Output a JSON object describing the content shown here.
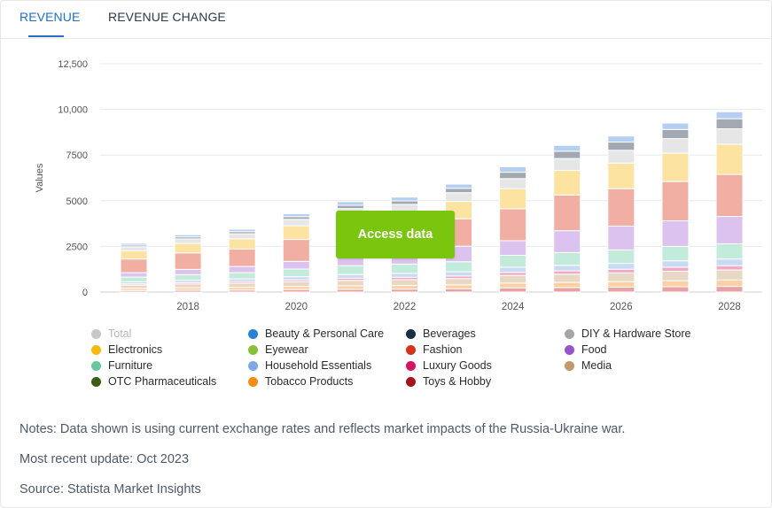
{
  "tabs": [
    {
      "label": "REVENUE",
      "active": true
    },
    {
      "label": "REVENUE CHANGE",
      "active": false
    }
  ],
  "access_button": {
    "label": "Access data"
  },
  "notes": {
    "notes": "Notes: Data shown is using current exchange rates and reflects market impacts of the Russia-Ukraine war.",
    "update": "Most recent update: Oct 2023",
    "source": "Source: Statista Market Insights"
  },
  "colors": {
    "accent": "#1f6fc2",
    "access_button": "#7ac60f"
  },
  "chart_data": {
    "type": "bar",
    "stacked": true,
    "ylabel": "Values",
    "xlabel": "",
    "ylim": [
      0,
      12500
    ],
    "yticks": [
      0,
      2500,
      5000,
      7500,
      10000,
      12500
    ],
    "ytick_labels": [
      "0",
      "2500",
      "5000",
      "7500",
      "10,000",
      "12,500"
    ],
    "categories": [
      "2017",
      "2018",
      "2019",
      "2020",
      "2021",
      "2022",
      "2023",
      "2024",
      "2025",
      "2026",
      "2027",
      "2028"
    ],
    "xtick_labels": [
      "2018",
      "2020",
      "2022",
      "2024",
      "2026",
      "2028"
    ],
    "grid": true,
    "legend_position": "bottom",
    "legend": [
      {
        "name": "Total",
        "color": "#c8c8c8",
        "disabled": true
      },
      {
        "name": "Beauty & Personal Care",
        "color": "#2a7fd9"
      },
      {
        "name": "Beverages",
        "color": "#1c2e44"
      },
      {
        "name": "DIY & Hardware Store",
        "color": "#a6a6a6"
      },
      {
        "name": "Electronics",
        "color": "#f6ba0f"
      },
      {
        "name": "Eyewear",
        "color": "#88c03c"
      },
      {
        "name": "Fashion",
        "color": "#d6331c"
      },
      {
        "name": "Food",
        "color": "#9a52cc"
      },
      {
        "name": "Furniture",
        "color": "#67c8a0"
      },
      {
        "name": "Household Essentials",
        "color": "#7ea8e3"
      },
      {
        "name": "Luxury Goods",
        "color": "#d61464"
      },
      {
        "name": "Media",
        "color": "#c2996a"
      },
      {
        "name": "OTC Pharmaceuticals",
        "color": "#3b5e12"
      },
      {
        "name": "Tobacco Products",
        "color": "#f48b17"
      },
      {
        "name": "Toys & Hobby",
        "color": "#a4141d"
      }
    ],
    "series": [
      {
        "name": "Toys & Hobby",
        "color": "#e8a1a5",
        "values": [
          80,
          100,
          110,
          140,
          150,
          160,
          180,
          230,
          250,
          270,
          290,
          310
        ]
      },
      {
        "name": "Tobacco Products",
        "color": "#fbd0a2",
        "values": [
          120,
          140,
          150,
          170,
          190,
          200,
          220,
          260,
          280,
          300,
          330,
          350
        ]
      },
      {
        "name": "Media",
        "color": "#e8d7c3",
        "values": [
          180,
          200,
          230,
          260,
          300,
          320,
          340,
          420,
          450,
          480,
          520,
          550
        ]
      },
      {
        "name": "Luxury Goods",
        "color": "#f3a8c6",
        "values": [
          70,
          80,
          90,
          100,
          120,
          130,
          140,
          170,
          180,
          200,
          220,
          230
        ]
      },
      {
        "name": "Household Essentials",
        "color": "#c8daf4",
        "values": [
          110,
          130,
          140,
          170,
          200,
          210,
          230,
          280,
          300,
          320,
          350,
          370
        ]
      },
      {
        "name": "Furniture",
        "color": "#c2ebdb",
        "values": [
          260,
          300,
          340,
          420,
          480,
          510,
          550,
          650,
          700,
          740,
          790,
          830
        ]
      },
      {
        "name": "Food",
        "color": "#dcc3ef",
        "values": [
          240,
          290,
          340,
          420,
          480,
          500,
          850,
          800,
          1200,
          1300,
          1400,
          1500
        ]
      },
      {
        "name": "Fashion",
        "color": "#f1aea3",
        "values": [
          750,
          900,
          950,
          1200,
          1400,
          1450,
          1500,
          1750,
          1950,
          2050,
          2150,
          2300
        ]
      },
      {
        "name": "Electronics",
        "color": "#fde3a1",
        "values": [
          450,
          520,
          560,
          750,
          850,
          900,
          950,
          1100,
          1350,
          1400,
          1550,
          1650
        ]
      },
      {
        "name": "DIY & Hardware Store",
        "color": "#e6e6e6",
        "values": [
          220,
          250,
          280,
          350,
          400,
          420,
          480,
          550,
          650,
          700,
          800,
          850
        ]
      },
      {
        "name": "Beverages",
        "color": "#a2a9b3",
        "values": [
          90,
          110,
          120,
          150,
          180,
          190,
          240,
          350,
          400,
          450,
          500,
          550
        ]
      },
      {
        "name": "Beauty & Personal Care",
        "color": "#b4cff2",
        "values": [
          100,
          120,
          130,
          160,
          200,
          210,
          230,
          300,
          320,
          330,
          350,
          380
        ]
      }
    ]
  }
}
